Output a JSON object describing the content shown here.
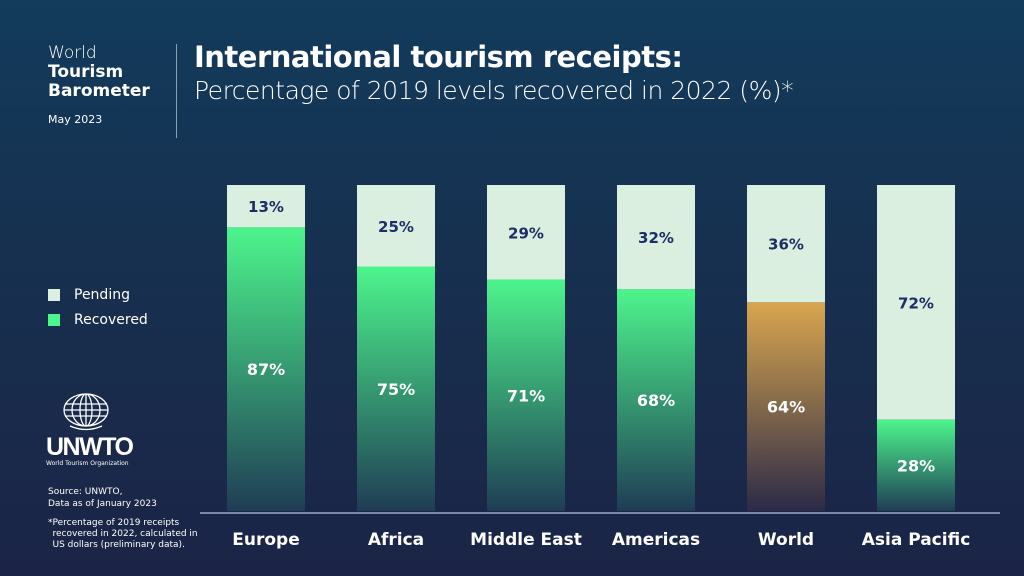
{
  "header": {
    "brand_line1": "World",
    "brand_line2": "Tourism",
    "brand_line3": "Barometer",
    "date": "May 2023",
    "title": "International tourism receipts:",
    "subtitle": "Percentage of 2019 levels recovered in 2022 (%)*"
  },
  "logo": {
    "name": "UNWTO",
    "org": "World Tourism Organization"
  },
  "footer": {
    "source_line1": "Source: UNWTO,",
    "source_line2": "Data as of January 2023",
    "note_mark": "*",
    "note": "Percentage of 2019 receipts recovered in 2022, calculated in US dollars (preliminary data)."
  },
  "chart_data": {
    "type": "bar",
    "stacked": true,
    "categories": [
      "Europe",
      "Africa",
      "Middle East",
      "Americas",
      "World",
      "Asia Pacific"
    ],
    "series": [
      {
        "name": "Recovered",
        "values": [
          87,
          75,
          71,
          68,
          64,
          28
        ],
        "labels": [
          "87%",
          "75%",
          "71%",
          "68%",
          "64%",
          "28%"
        ]
      },
      {
        "name": "Pending",
        "values": [
          13,
          25,
          29,
          32,
          36,
          72
        ],
        "labels": [
          "13%",
          "25%",
          "29%",
          "32%",
          "36%",
          "72%"
        ]
      }
    ],
    "ylim": [
      0,
      100
    ],
    "legend": "left",
    "grid": false,
    "colors": {
      "recovered": "#4df58d",
      "recovered_highlight": "#d9a64e",
      "pending": "#dbefe0",
      "highlight_category": "World"
    }
  }
}
